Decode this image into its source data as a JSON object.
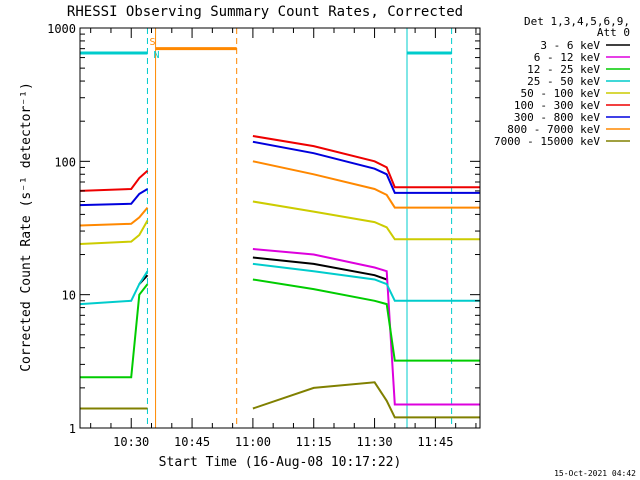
{
  "chart_data": {
    "type": "line",
    "title": "RHESSI Observing Summary Count Rates, Corrected",
    "xlabel": "Start Time (16-Aug-08 10:17:22)",
    "ylabel": "Corrected Count Rate (s⁻¹ detector⁻¹)",
    "x_start": "10:17:22",
    "xlim": [
      "10:17:22",
      "11:56:00"
    ],
    "ylim": [
      1,
      1000
    ],
    "yscale": "log",
    "x_ticks": [
      "10:30",
      "10:45",
      "11:00",
      "11:15",
      "11:30",
      "11:45"
    ],
    "y_ticks": [
      {
        "value": 1,
        "label": "1"
      },
      {
        "value": 10,
        "label": "10"
      },
      {
        "value": 100,
        "label": "100"
      },
      {
        "value": 1000,
        "label": "1000"
      }
    ],
    "legend": {
      "placement": "right",
      "header": [
        "Det 1,3,4,5,6,9,",
        "Att 0"
      ]
    },
    "series": [
      {
        "name": "3 - 6 keV",
        "color": "#000000",
        "x": [
          "10:17:22",
          "10:30",
          "10:32",
          "10:34",
          "10:58",
          "11:00",
          "11:15",
          "11:30",
          "11:33",
          "11:35",
          "11:56"
        ],
        "y": [
          null,
          null,
          12,
          14,
          null,
          19,
          17,
          14,
          13,
          null,
          null
        ]
      },
      {
        "name": "6 - 12 keV",
        "color": "#dd00dd",
        "x": [
          "10:17:22",
          "10:30",
          "10:32",
          "10:34",
          "10:58",
          "11:00",
          "11:15",
          "11:30",
          "11:33",
          "11:35",
          "11:56"
        ],
        "y": [
          1.4,
          1.4,
          1.4,
          1.4,
          null,
          22,
          20,
          16,
          15,
          1.5,
          1.5
        ]
      },
      {
        "name": "12 - 25 keV",
        "color": "#00cc00",
        "x": [
          "10:17:22",
          "10:30",
          "10:32",
          "10:34",
          "10:58",
          "11:00",
          "11:15",
          "11:30",
          "11:33",
          "11:35",
          "11:56"
        ],
        "y": [
          2.4,
          2.4,
          10,
          12,
          null,
          13,
          11,
          9,
          8.5,
          3.2,
          3.2
        ]
      },
      {
        "name": "25 - 50 keV",
        "color": "#00cccc",
        "x": [
          "10:17:22",
          "10:30",
          "10:32",
          "10:34",
          "10:58",
          "11:00",
          "11:15",
          "11:30",
          "11:33",
          "11:35",
          "11:56"
        ],
        "y": [
          8.5,
          9,
          12,
          15,
          null,
          17,
          15,
          13,
          12,
          9,
          9
        ]
      },
      {
        "name": "50 - 100 keV",
        "color": "#cccc00",
        "x": [
          "10:17:22",
          "10:30",
          "10:32",
          "10:34",
          "10:58",
          "11:00",
          "11:15",
          "11:30",
          "11:33",
          "11:35",
          "11:56"
        ],
        "y": [
          24,
          25,
          28,
          36,
          null,
          50,
          42,
          35,
          32,
          26,
          26
        ]
      },
      {
        "name": "100 - 300 keV",
        "color": "#ee0000",
        "x": [
          "10:17:22",
          "10:30",
          "10:32",
          "10:34",
          "10:58",
          "11:00",
          "11:15",
          "11:30",
          "11:33",
          "11:35",
          "11:56"
        ],
        "y": [
          60,
          62,
          75,
          85,
          null,
          155,
          130,
          100,
          90,
          64,
          64
        ]
      },
      {
        "name": "300 - 800 keV",
        "color": "#0000dd",
        "x": [
          "10:17:22",
          "10:30",
          "10:32",
          "10:34",
          "10:58",
          "11:00",
          "11:15",
          "11:30",
          "11:33",
          "11:35",
          "11:56"
        ],
        "y": [
          47,
          48,
          57,
          62,
          null,
          140,
          115,
          88,
          80,
          58,
          58
        ]
      },
      {
        "name": "800 - 7000 keV",
        "color": "#ff8800",
        "x": [
          "10:17:22",
          "10:30",
          "10:32",
          "10:34",
          "10:58",
          "11:00",
          "11:15",
          "11:30",
          "11:33",
          "11:35",
          "11:56"
        ],
        "y": [
          33,
          34,
          38,
          45,
          null,
          100,
          80,
          62,
          56,
          45,
          45
        ]
      },
      {
        "name": "7000 - 15000 keV",
        "color": "#808000",
        "x": [
          "10:17:22",
          "10:30",
          "10:32",
          "10:34",
          "10:58",
          "11:00",
          "11:15",
          "11:30",
          "11:33",
          "11:35",
          "11:56"
        ],
        "y": [
          1.4,
          1.4,
          1.4,
          1.4,
          null,
          1.4,
          2,
          2.2,
          1.6,
          1.2,
          1.2
        ]
      }
    ],
    "annotations": [
      {
        "kind": "band",
        "color": "#00cccc",
        "x": [
          "10:17:22",
          "10:34"
        ],
        "y": 650
      },
      {
        "kind": "band",
        "color": "#00cccc",
        "x": [
          "11:38",
          "11:49"
        ],
        "y": 650
      },
      {
        "kind": "band",
        "color": "#ff8800",
        "x": [
          "10:36",
          "10:56"
        ],
        "y": 700
      },
      {
        "kind": "vline",
        "color": "#00cccc",
        "style": "dashed",
        "x": "10:34"
      },
      {
        "kind": "vline",
        "color": "#00cccc",
        "style": "solid",
        "x": "10:17:22"
      },
      {
        "kind": "vline",
        "color": "#ff8800",
        "style": "solid",
        "x": "10:36"
      },
      {
        "kind": "vline",
        "color": "#ff8800",
        "style": "dashed",
        "x": "10:56"
      },
      {
        "kind": "vline",
        "color": "#00cccc",
        "style": "solid",
        "x": "11:38"
      },
      {
        "kind": "vline",
        "color": "#00cccc",
        "style": "dashed",
        "x": "11:49"
      },
      {
        "kind": "label",
        "text": "S",
        "color": "#ff8800",
        "x": "10:34",
        "y": 800
      },
      {
        "kind": "label",
        "text": "N",
        "color": "#00cccc",
        "x": "10:35",
        "y": 640
      }
    ],
    "footer": "15-Oct-2021 04:42"
  }
}
